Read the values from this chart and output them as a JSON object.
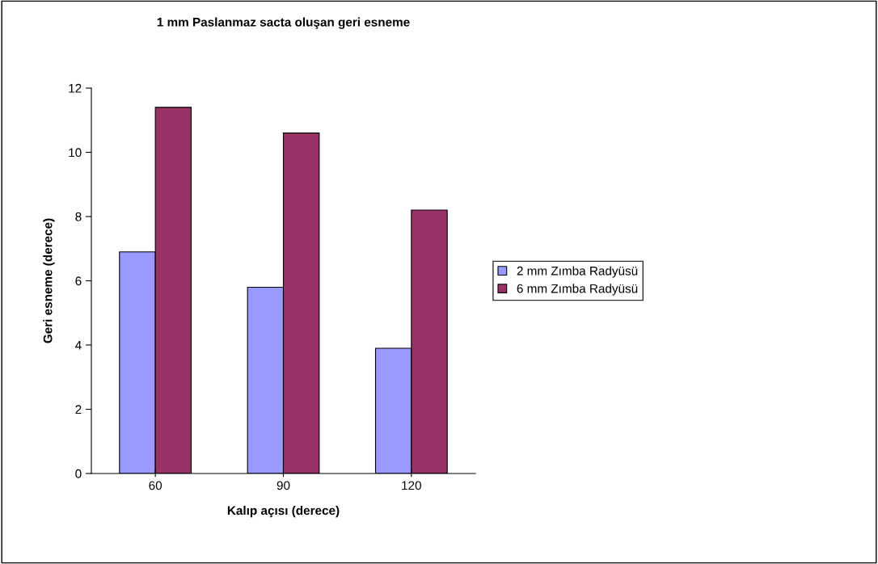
{
  "chart_data": {
    "type": "bar",
    "title": "1 mm Paslanmaz sacta oluşan geri esneme",
    "xlabel": "Kalıp açısı (derece)",
    "ylabel": "Geri esneme (derece)",
    "categories": [
      "60",
      "90",
      "120"
    ],
    "series": [
      {
        "name": "2 mm Zımba Radyüsü",
        "color": "#9999ff",
        "values": [
          6.9,
          5.8,
          3.9
        ]
      },
      {
        "name": "6 mm Zımba Radyüsü",
        "color": "#993366",
        "values": [
          11.4,
          10.6,
          8.2
        ]
      }
    ],
    "ylim": [
      0,
      12
    ],
    "yticks": [
      0,
      2,
      4,
      6,
      8,
      10,
      12
    ],
    "grid": false,
    "legend": "right"
  }
}
